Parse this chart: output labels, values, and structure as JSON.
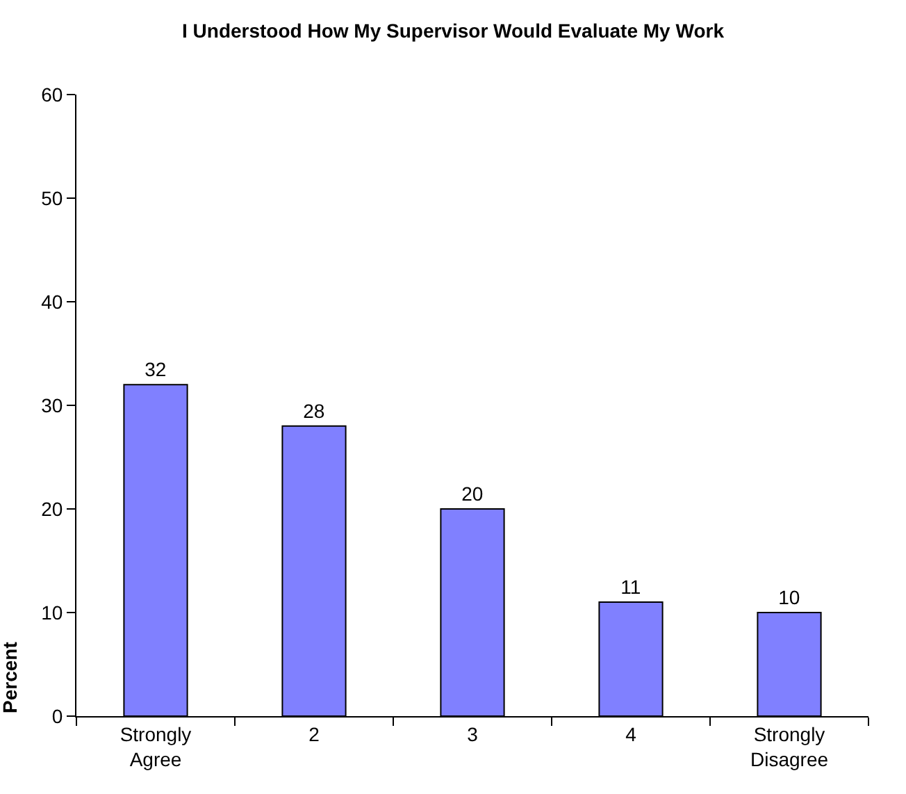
{
  "chart_data": {
    "type": "bar",
    "title": "I Understood How My Supervisor Would Evaluate My Work",
    "ylabel": "Percent",
    "categories": [
      "Strongly Agree",
      "2",
      "3",
      "4",
      "Strongly Disagree"
    ],
    "values": [
      32,
      28,
      20,
      11,
      10
    ],
    "color": "#8080ff",
    "data_labels": true,
    "ylim": [
      0,
      60
    ],
    "yticks": [
      0,
      10,
      20,
      30,
      40,
      50,
      60
    ],
    "grid": false,
    "legend": false
  }
}
